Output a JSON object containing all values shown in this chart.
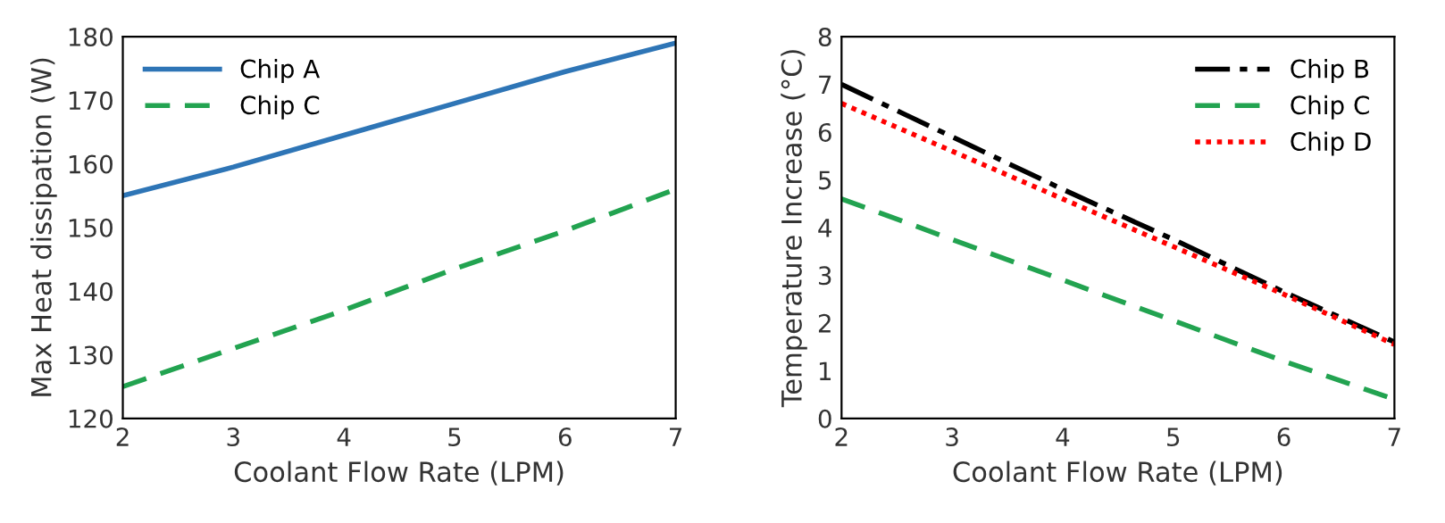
{
  "chart_data": [
    {
      "type": "line",
      "xlabel": "Coolant Flow Rate (LPM)",
      "ylabel": "Max Heat dissipation (W)",
      "x": [
        2,
        3,
        4,
        5,
        6,
        7
      ],
      "xlim": [
        2,
        7
      ],
      "xticks": [
        2,
        3,
        4,
        5,
        6,
        7
      ],
      "ylim": [
        120,
        180
      ],
      "yticks": [
        120,
        130,
        140,
        150,
        160,
        170,
        180
      ],
      "grid": false,
      "legend": "top left",
      "marker": "none",
      "series": [
        {
          "name": "Chip A",
          "color": "#2e75b6",
          "line_style": "solid",
          "values": [
            155,
            159.5,
            164.5,
            169.5,
            174.5,
            179
          ]
        },
        {
          "name": "Chip C",
          "color": "#22a350",
          "line_style": "dashed",
          "values": [
            125,
            131,
            137,
            143.5,
            149.5,
            156
          ]
        }
      ]
    },
    {
      "type": "line",
      "xlabel": "Coolant Flow Rate (LPM)",
      "ylabel": "Temperature Increase (°C)",
      "x": [
        2,
        3,
        4,
        5,
        6,
        7
      ],
      "xlim": [
        2,
        7
      ],
      "xticks": [
        2,
        3,
        4,
        5,
        6,
        7
      ],
      "ylim": [
        0,
        8
      ],
      "yticks": [
        0,
        1,
        2,
        3,
        4,
        5,
        6,
        7,
        8
      ],
      "grid": false,
      "legend": "top right",
      "marker": "none",
      "series": [
        {
          "name": "Chip B",
          "color": "#000000",
          "line_style": "dashdot",
          "values": [
            7.0,
            5.9,
            4.8,
            3.75,
            2.65,
            1.6
          ]
        },
        {
          "name": "Chip C",
          "color": "#22a350",
          "line_style": "dashed",
          "values": [
            4.6,
            3.75,
            2.9,
            2.05,
            1.2,
            0.4
          ]
        },
        {
          "name": "Chip D",
          "color": "#ff0000",
          "line_style": "dotted",
          "values": [
            6.6,
            5.6,
            4.6,
            3.6,
            2.6,
            1.55
          ]
        }
      ]
    }
  ]
}
